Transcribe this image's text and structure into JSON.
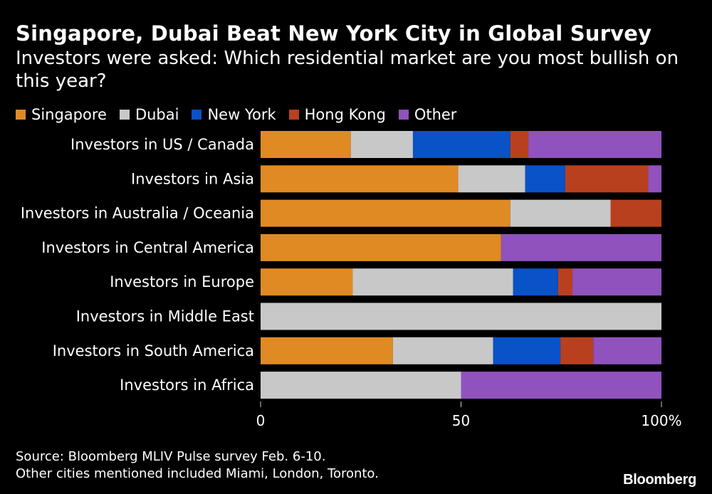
{
  "chart_data": {
    "type": "bar",
    "orientation": "horizontal",
    "stacked": true,
    "title": "Singapore, Dubai Beat New York City in Global Survey",
    "subtitle": "Investors were asked: Which residential market are you most bullish on this year?",
    "categories": [
      "Investors in US / Canada",
      "Investors in Asia",
      "Investors in Australia / Oceania",
      "Investors in Central America",
      "Investors in Europe",
      "Investors in Middle East",
      "Investors in South America",
      "Investors in Africa"
    ],
    "series": [
      {
        "name": "Singapore",
        "color": "#e08a23",
        "values": [
          22.5,
          49.3,
          62.3,
          60,
          23,
          0,
          33,
          0
        ]
      },
      {
        "name": "Dubai",
        "color": "#c8c8c8",
        "values": [
          15.5,
          16.7,
          25,
          0,
          40,
          100,
          25,
          50
        ]
      },
      {
        "name": "New York",
        "color": "#0a52c8",
        "values": [
          24.3,
          10,
          0,
          0,
          11.2,
          0,
          16.8,
          0
        ]
      },
      {
        "name": "Hong Kong",
        "color": "#b8401f",
        "values": [
          4.5,
          20.7,
          12.7,
          0,
          3.6,
          0,
          8.2,
          0
        ]
      },
      {
        "name": "Other",
        "color": "#9052bd",
        "values": [
          33.2,
          3.3,
          0,
          40,
          22.2,
          0,
          17,
          50
        ]
      }
    ],
    "xlim": [
      0,
      100
    ],
    "xticks": [
      "0",
      "50",
      "100%"
    ],
    "xtick_values": [
      0,
      50,
      100
    ],
    "legend_position": "top-left"
  },
  "footer": {
    "source": "Source: Bloomberg MLIV Pulse survey Feb. 6-10.",
    "note": "Other cities mentioned included Miami, London, Toronto."
  },
  "brand": "Bloomberg"
}
